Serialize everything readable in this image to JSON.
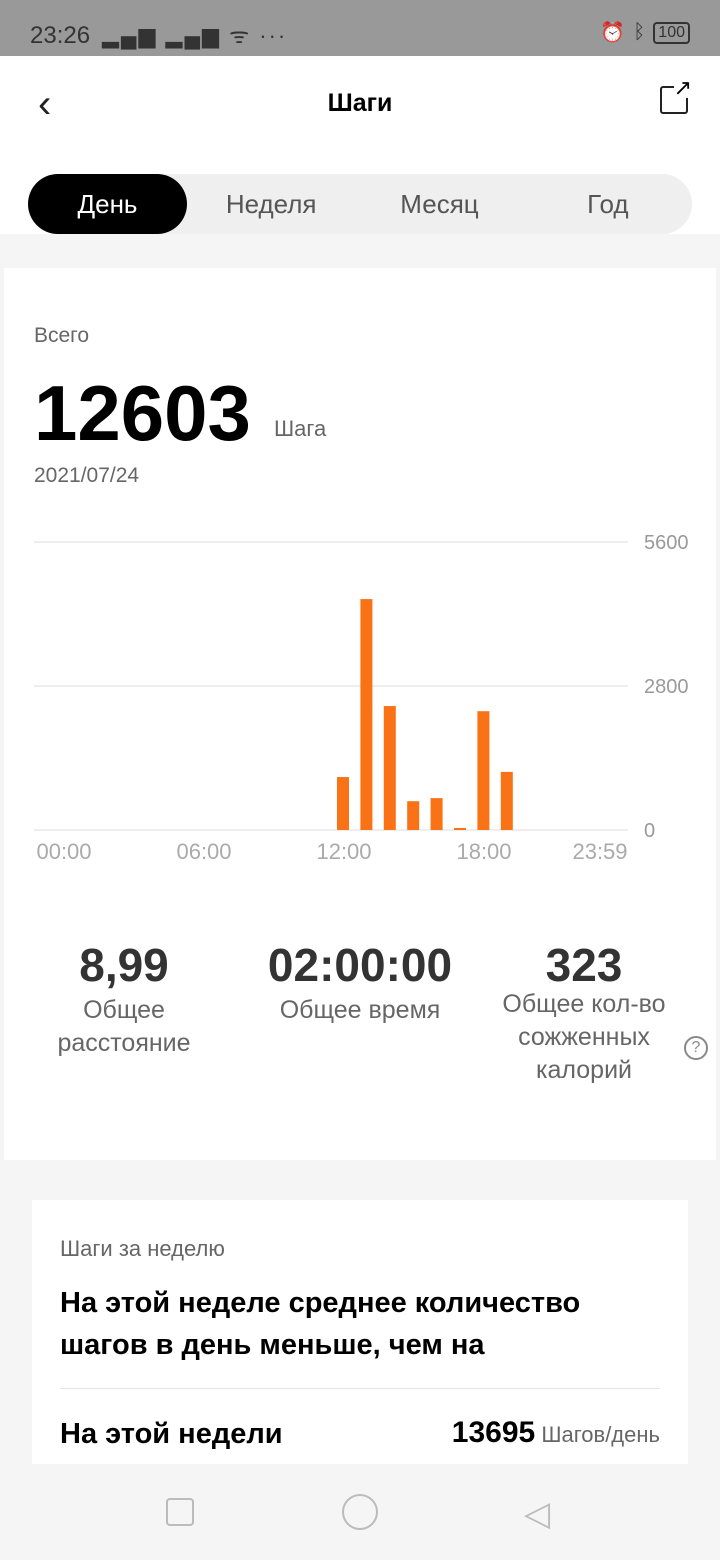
{
  "status_bar": {
    "time": "23:26",
    "battery": "100"
  },
  "header": {
    "title": "Шаги"
  },
  "tabs": [
    {
      "label": "День",
      "active": true
    },
    {
      "label": "Неделя"
    },
    {
      "label": "Месяц"
    },
    {
      "label": "Год"
    }
  ],
  "summary": {
    "label": "Всего",
    "value": "12603",
    "unit": "Шага",
    "date": "2021/07/24"
  },
  "chart_data": {
    "type": "bar",
    "accent": "#f97316",
    "x_ticks": [
      "00:00",
      "06:00",
      "12:00",
      "18:00",
      "23:59"
    ],
    "y_ticks": [
      "5600",
      "2800",
      "0"
    ],
    "ylim": [
      0,
      5600
    ],
    "grid": true,
    "hours": [
      12,
      13,
      14,
      15,
      16,
      17,
      18,
      19
    ],
    "values": [
      1030,
      4490,
      2410,
      560,
      620,
      40,
      2310,
      1130
    ]
  },
  "stats": [
    {
      "value": "8,99",
      "label": "Общее расстояние"
    },
    {
      "value": "02:00:00",
      "label": "Общее время"
    },
    {
      "value": "323",
      "label": "Общее кол-во сожженных калорий"
    }
  ],
  "weekly": {
    "label": "Шаги за неделю",
    "title": "На этой неделе среднее количество шагов в день меньше, чем на",
    "row_label": "На этой недели",
    "row_value": "13695",
    "row_unit": "Шагов/день"
  }
}
